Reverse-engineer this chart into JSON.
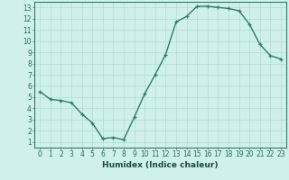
{
  "x": [
    0,
    1,
    2,
    3,
    4,
    5,
    6,
    7,
    8,
    9,
    10,
    11,
    12,
    13,
    14,
    15,
    16,
    17,
    18,
    19,
    20,
    21,
    22,
    23
  ],
  "y": [
    5.5,
    4.8,
    4.7,
    4.5,
    3.5,
    2.7,
    1.3,
    1.4,
    1.2,
    3.2,
    5.3,
    7.0,
    8.8,
    11.7,
    12.2,
    13.1,
    13.1,
    13.0,
    12.9,
    12.7,
    11.5,
    9.7,
    8.7,
    8.4
  ],
  "line_color": "#2e7d6e",
  "marker": "+",
  "bg_color": "#cff0eb",
  "grid_color": "#b0ddd8",
  "xlabel": "Humidex (Indice chaleur)",
  "xlim": [
    -0.5,
    23.5
  ],
  "ylim": [
    0.5,
    13.5
  ],
  "xticks": [
    0,
    1,
    2,
    3,
    4,
    5,
    6,
    7,
    8,
    9,
    10,
    11,
    12,
    13,
    14,
    15,
    16,
    17,
    18,
    19,
    20,
    21,
    22,
    23
  ],
  "yticks": [
    1,
    2,
    3,
    4,
    5,
    6,
    7,
    8,
    9,
    10,
    11,
    12,
    13
  ],
  "tick_fontsize": 5.5,
  "xlabel_fontsize": 6.5,
  "linewidth": 1.0,
  "markersize": 3.5,
  "tick_color": "#2e6b62",
  "label_color": "#1a4a44"
}
